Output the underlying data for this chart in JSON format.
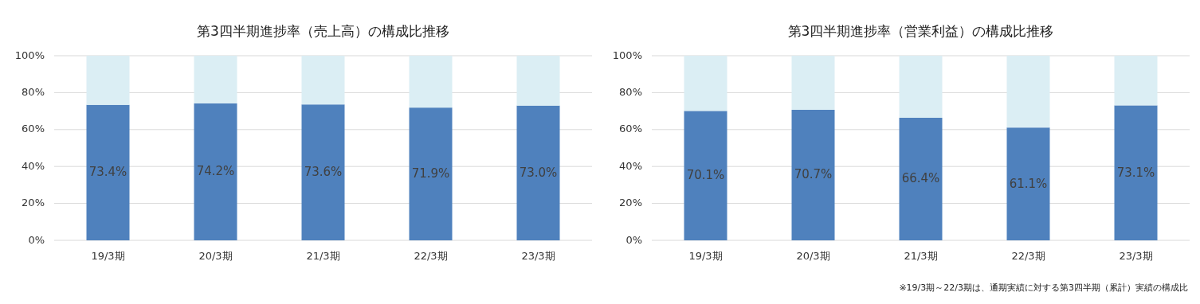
{
  "chart_data": [
    {
      "type": "bar",
      "title": "第3四半期進捗率（売上高）の構成比推移",
      "categories": [
        "19/3期",
        "20/3期",
        "21/3期",
        "22/3期",
        "23/3期"
      ],
      "stacked": true,
      "grid": "y",
      "ylim": [
        0,
        100
      ],
      "yticks": [
        {
          "value": 0,
          "label": "0%"
        },
        {
          "value": 20,
          "label": "20%"
        },
        {
          "value": 40,
          "label": "40%"
        },
        {
          "value": 60,
          "label": "60%"
        },
        {
          "value": 80,
          "label": "80%"
        },
        {
          "value": 100,
          "label": "100%"
        }
      ],
      "series": [
        {
          "color": "#4f81bd",
          "values": [
            73.4,
            74.2,
            73.6,
            71.9,
            73.0
          ],
          "value_labels": [
            "73.4%",
            "74.2%",
            "73.6%",
            "71.9%",
            "73.0%"
          ]
        },
        {
          "color": "#dbeef4",
          "values": [
            26.6,
            25.8,
            26.4,
            28.1,
            27.0
          ]
        }
      ]
    },
    {
      "type": "bar",
      "title": "第3四半期進捗率（営業利益）の構成比推移",
      "categories": [
        "19/3期",
        "20/3期",
        "21/3期",
        "22/3期",
        "23/3期"
      ],
      "stacked": true,
      "grid": "y",
      "ylim": [
        0,
        100
      ],
      "yticks": [
        {
          "value": 0,
          "label": "0%"
        },
        {
          "value": 20,
          "label": "20%"
        },
        {
          "value": 40,
          "label": "40%"
        },
        {
          "value": 60,
          "label": "60%"
        },
        {
          "value": 80,
          "label": "80%"
        },
        {
          "value": 100,
          "label": "100%"
        }
      ],
      "series": [
        {
          "color": "#4f81bd",
          "values": [
            70.1,
            70.7,
            66.4,
            61.1,
            73.1
          ],
          "value_labels": [
            "70.1%",
            "70.7%",
            "66.4%",
            "61.1%",
            "73.1%"
          ]
        },
        {
          "color": "#dbeef4",
          "values": [
            29.9,
            29.3,
            33.6,
            38.9,
            26.9
          ]
        }
      ],
      "annotations": [
        "※19/3期～22/3期は、通期実績に対する第3四半期（累計）実績の構成比"
      ]
    }
  ]
}
